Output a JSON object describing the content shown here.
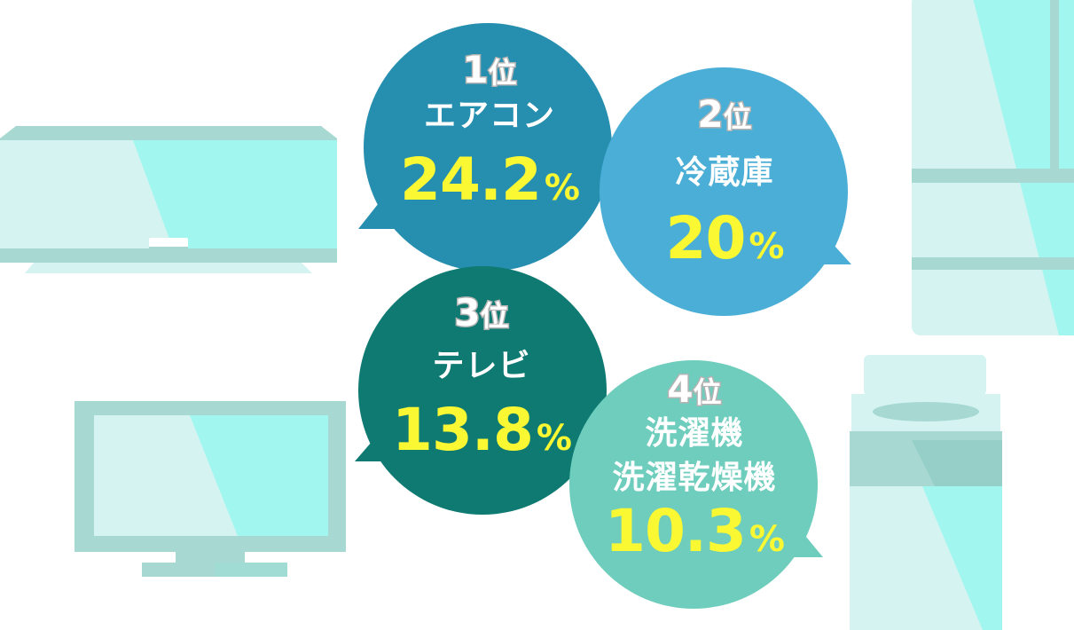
{
  "colors": {
    "rank1": "#268fb0",
    "rank2": "#4aaed6",
    "rank3": "#0e7a72",
    "rank4": "#6ecdbc",
    "value_text": "#faf733",
    "appliance_light": "#d4f3f1",
    "appliance_mid": "#a7d8d2",
    "appliance_glare": "#a1f7ef"
  },
  "appliances": [
    {
      "name": "air-conditioner-icon"
    },
    {
      "name": "refrigerator-icon"
    },
    {
      "name": "tv-icon"
    },
    {
      "name": "washing-machine-icon"
    }
  ],
  "ranking": [
    {
      "rank_num": "1",
      "rank_unit": "位",
      "label_lines": [
        "エアコン"
      ],
      "value": "24.2",
      "percent_sign": "%",
      "share": 24.2
    },
    {
      "rank_num": "2",
      "rank_unit": "位",
      "label_lines": [
        "冷蔵庫"
      ],
      "value": "20",
      "percent_sign": "%",
      "share": 20
    },
    {
      "rank_num": "3",
      "rank_unit": "位",
      "label_lines": [
        "テレビ"
      ],
      "value": "13.8",
      "percent_sign": "%",
      "share": 13.8
    },
    {
      "rank_num": "4",
      "rank_unit": "位",
      "label_lines": [
        "洗濯機",
        "洗濯乾燥機"
      ],
      "value": "10.3",
      "percent_sign": "%",
      "share": 10.3
    }
  ]
}
